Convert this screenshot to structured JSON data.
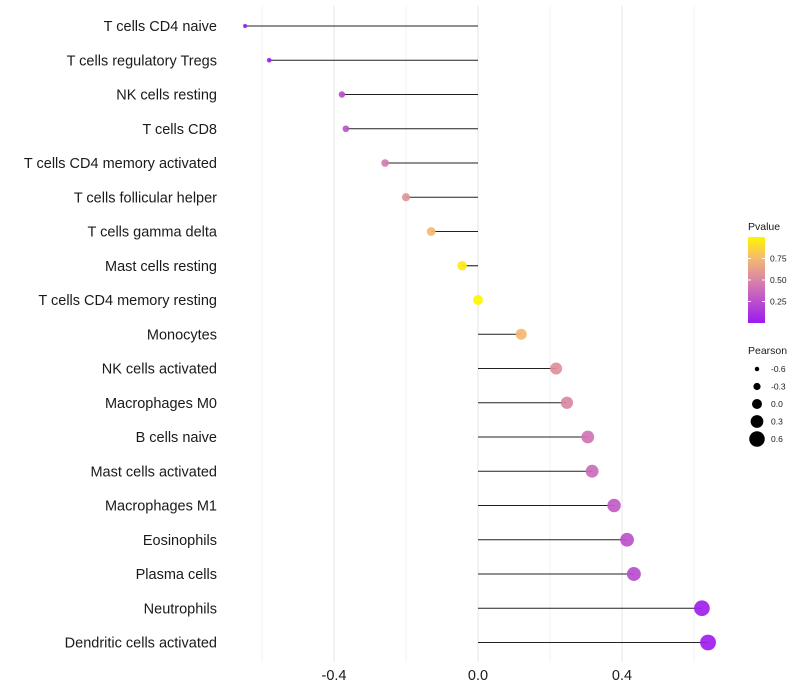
{
  "chart_data": {
    "type": "lollipop",
    "title": "",
    "xlabel": "",
    "ylabel": "",
    "xlim": [
      -0.72,
      0.73
    ],
    "x_ticks": [
      -0.4,
      0.0,
      0.4
    ],
    "x_tick_labels": [
      "-0.4",
      "0.0",
      "0.4"
    ],
    "x_minor_gridlines": [
      -0.6,
      -0.2,
      0.2,
      0.6
    ],
    "grid": true,
    "categories": [
      "T cells CD4 naive",
      "T cells regulatory  Tregs",
      "NK cells resting",
      "T cells CD8",
      "T cells CD4 memory activated",
      "T cells follicular helper",
      "T cells gamma delta",
      "Mast cells resting",
      "T cells CD4 memory resting",
      "Monocytes",
      "NK cells activated",
      "Macrophages M0",
      "B cells naive",
      "Mast cells activated",
      "Macrophages M1",
      "Eosinophils",
      "Plasma cells",
      "Neutrophils",
      "Dendritic cells activated"
    ],
    "pearson": [
      -0.647,
      -0.58,
      -0.378,
      -0.367,
      -0.258,
      -0.2,
      -0.13,
      -0.044,
      0.0,
      0.12,
      0.217,
      0.247,
      0.305,
      0.317,
      0.378,
      0.414,
      0.433,
      0.622,
      0.639
    ],
    "pvalue": [
      0.0,
      0.02,
      0.25,
      0.27,
      0.45,
      0.58,
      0.75,
      0.95,
      1.0,
      0.75,
      0.55,
      0.5,
      0.42,
      0.38,
      0.3,
      0.26,
      0.24,
      0.03,
      0.02
    ],
    "legends": {
      "color": {
        "title": "Pvalue",
        "breaks": [
          0.25,
          0.5,
          0.75
        ],
        "labels": [
          "0.25",
          "0.50",
          "0.75"
        ],
        "range": [
          0.0,
          1.0
        ],
        "low_color": "#9B1AF0",
        "mid_color": "#D47AB0",
        "high_color": "#FFF500",
        "placement": "right"
      },
      "size": {
        "title": "Pearson",
        "breaks": [
          -0.6,
          -0.3,
          0.0,
          0.3,
          0.6
        ],
        "labels": [
          "-0.6",
          "-0.3",
          "0.0",
          "0.3",
          "0.6"
        ],
        "placement": "right"
      }
    }
  }
}
